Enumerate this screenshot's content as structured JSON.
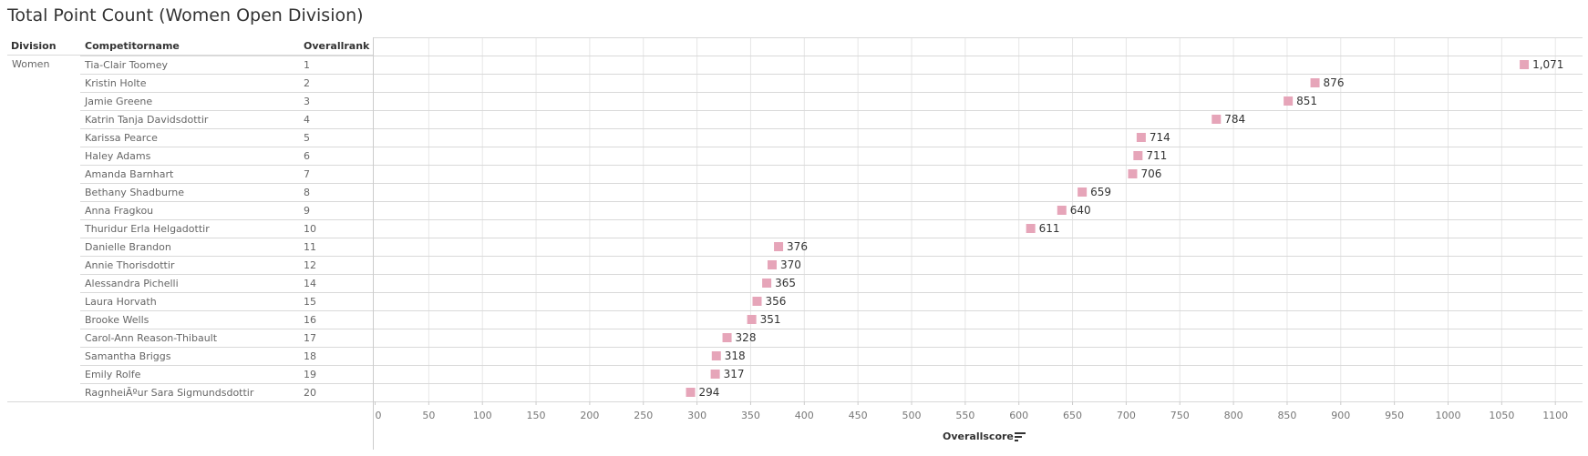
{
  "title": "Total Point Count (Women Open Division)",
  "headers": {
    "division": "Division",
    "competitor": "Competitorname",
    "rank": "Overallrank"
  },
  "division_value": "Women",
  "colors": {
    "mark": "#e6a5b9",
    "grid": "#e6e6e6",
    "rowline": "#d9d9d9",
    "axis": "#cccccc",
    "text": "#333333",
    "muted": "#666666"
  },
  "chart_data": {
    "type": "scatter",
    "title": "Total Point Count (Women Open Division)",
    "xlabel": "Overallscore",
    "xlim": [
      0,
      1100
    ],
    "xticks": [
      0,
      50,
      100,
      150,
      200,
      250,
      300,
      350,
      400,
      450,
      500,
      550,
      600,
      650,
      700,
      750,
      800,
      850,
      900,
      950,
      1000,
      1050,
      1100
    ],
    "grid": true,
    "mark_shape": "square",
    "rows": [
      {
        "division": "Women",
        "name": "Tia-Clair Toomey",
        "rank": "1",
        "score": 1071,
        "label": "1,071"
      },
      {
        "division": "Women",
        "name": "Kristin Holte",
        "rank": "2",
        "score": 876,
        "label": "876"
      },
      {
        "division": "Women",
        "name": "Jamie Greene",
        "rank": "3",
        "score": 851,
        "label": "851"
      },
      {
        "division": "Women",
        "name": "Katrin Tanja Davidsdottir",
        "rank": "4",
        "score": 784,
        "label": "784"
      },
      {
        "division": "Women",
        "name": "Karissa Pearce",
        "rank": "5",
        "score": 714,
        "label": "714"
      },
      {
        "division": "Women",
        "name": "Haley Adams",
        "rank": "6",
        "score": 711,
        "label": "711"
      },
      {
        "division": "Women",
        "name": "Amanda Barnhart",
        "rank": "7",
        "score": 706,
        "label": "706"
      },
      {
        "division": "Women",
        "name": "Bethany Shadburne",
        "rank": "8",
        "score": 659,
        "label": "659"
      },
      {
        "division": "Women",
        "name": "Anna Fragkou",
        "rank": "9",
        "score": 640,
        "label": "640"
      },
      {
        "division": "Women",
        "name": "Thuridur Erla Helgadottir",
        "rank": "10",
        "score": 611,
        "label": "611"
      },
      {
        "division": "Women",
        "name": "Danielle Brandon",
        "rank": "11",
        "score": 376,
        "label": "376"
      },
      {
        "division": "Women",
        "name": "Annie Thorisdottir",
        "rank": "12",
        "score": 370,
        "label": "370"
      },
      {
        "division": "Women",
        "name": "Alessandra Pichelli",
        "rank": "14",
        "score": 365,
        "label": "365"
      },
      {
        "division": "Women",
        "name": "Laura Horvath",
        "rank": "15",
        "score": 356,
        "label": "356"
      },
      {
        "division": "Women",
        "name": "Brooke Wells",
        "rank": "16",
        "score": 351,
        "label": "351"
      },
      {
        "division": "Women",
        "name": "Carol-Ann Reason-Thibault",
        "rank": "17",
        "score": 328,
        "label": "328"
      },
      {
        "division": "Women",
        "name": "Samantha Briggs",
        "rank": "18",
        "score": 318,
        "label": "318"
      },
      {
        "division": "Women",
        "name": "Emily Rolfe",
        "rank": "19",
        "score": 317,
        "label": "317"
      },
      {
        "division": "Women",
        "name": "RagnheiÃºur Sara Sigmundsdottir",
        "rank": "20",
        "score": 294,
        "label": "294"
      }
    ]
  }
}
